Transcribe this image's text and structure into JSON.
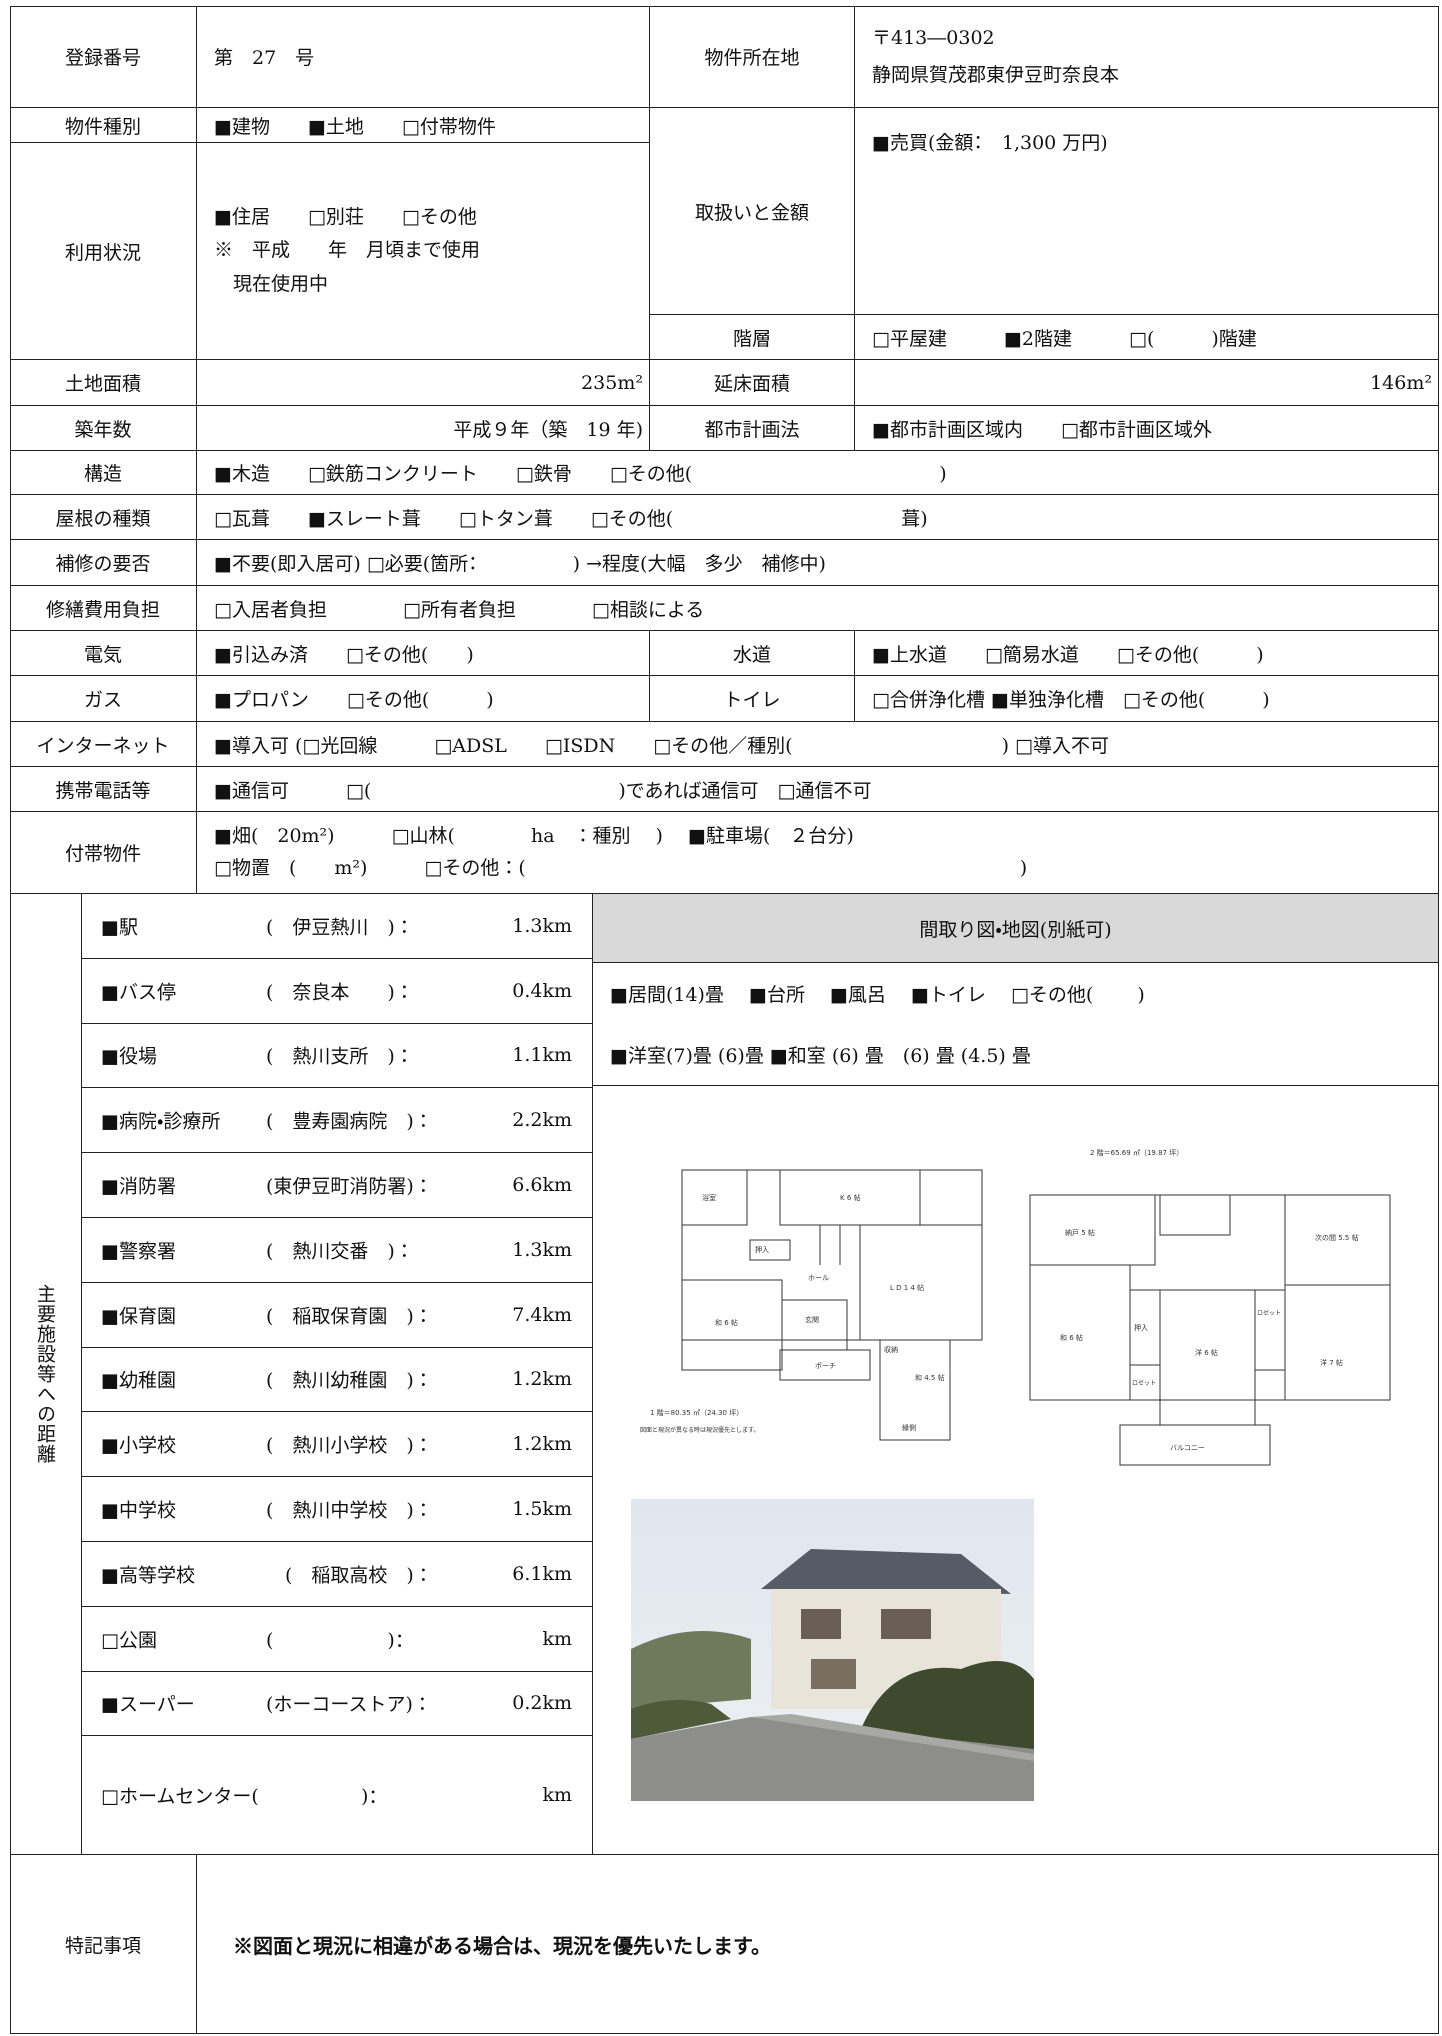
{
  "form": {
    "registration": {
      "label": "登録番号",
      "value": "第　27　号"
    },
    "location": {
      "label": "物件所在地",
      "postal": "〒413―0302",
      "address": "静岡県賀茂郡東伊豆町奈良本"
    },
    "kind": {
      "label": "物件種別",
      "value": "■建物　　■土地　　□付帯物件"
    },
    "usage": {
      "label": "利用状況",
      "lines": [
        "■住居　　□別荘　　□その他",
        "※　平成　　年　月頃まで使用",
        "　現在使用中"
      ]
    },
    "price": {
      "label": "取扱いと金額",
      "value": "■売買(金額：　1,300 万円)"
    },
    "floors": {
      "label": "階層",
      "value": "□平屋建　　　■2階建　　　□(　　　)階建"
    },
    "land_area": {
      "label": "土地面積",
      "value": "235m²"
    },
    "floor_area": {
      "label": "延床面積",
      "value": "146m²"
    },
    "age": {
      "label": "築年数",
      "value": "平成９年（築　19 年)"
    },
    "city_planning": {
      "label": "都市計画法",
      "value": "■都市計画区域内　　□都市計画区域外"
    },
    "structure": {
      "label": "構造",
      "value": "■木造　　□鉄筋コンクリート　　□鉄骨　　□その他(　　　　　　　　　　　　　)"
    },
    "roof": {
      "label": "屋根の種類",
      "value": "□瓦葺　　■スレート葺　　□トタン葺　　□その他(　　　　　　　　　　　　葺)"
    },
    "repair": {
      "label": "補修の要否",
      "value": "■不要(即入居可) □必要(箇所：　　　　　) →程度(大幅　多少　補修中)"
    },
    "repair_cost": {
      "label": "修繕費用負担",
      "value": "□入居者負担　　　　□所有者負担　　　　□相談による"
    },
    "electricity": {
      "label": "電気",
      "value": "■引込み済　　□その他(　　)"
    },
    "water": {
      "label": "水道",
      "value": "■上水道　　□簡易水道　　□その他(　　　)"
    },
    "gas": {
      "label": "ガス",
      "value": "■プロパン　　□その他(　　　)"
    },
    "toilet": {
      "label": "トイレ",
      "value": "□合併浄化槽 ■単独浄化槽　□その他(　　　)"
    },
    "internet": {
      "label": "インターネット",
      "value": "■導入可 (□光回線　　　□ADSL　　□ISDN　　□その他／種別(　　　　　　　　　　　) □導入不可"
    },
    "mobile": {
      "label": "携帯電話等",
      "value": "■通信可　　　□(　　　　　　　　　　　　　)であれば通信可　□通信不可"
    },
    "attachments": {
      "label": "付帯物件",
      "lines": [
        "■畑(　20m²)　　　□山林(　　　　ha　：種別　 )　 ■駐車場(　２台分)",
        "□物置　(　　m²)　　　□その他：(　　　　　　　　　　　　　　　　　　　　　　　　　　)"
      ]
    },
    "distances": {
      "label": "主要施設等への距離",
      "items": [
        {
          "name": "■駅",
          "place": "(　伊豆熱川　)：",
          "distance": "1.3km"
        },
        {
          "name": "■バス停",
          "place": "(　奈良本　　)：",
          "distance": "0.4km"
        },
        {
          "name": "■役場",
          "place": "(　熱川支所　)：",
          "distance": "1.1km"
        },
        {
          "name": "■病院・診療所",
          "place": "(　豊寿園病院　)：",
          "distance": "2.2km"
        },
        {
          "name": "■消防署",
          "place": "(東伊豆町消防署)：",
          "distance": "6.6km"
        },
        {
          "name": "■警察署",
          "place": "(　熱川交番　)：",
          "distance": "1.3km"
        },
        {
          "name": "■保育園",
          "place": "(　稲取保育園　)：",
          "distance": "7.4km"
        },
        {
          "name": "■幼稚園",
          "place": "(　熱川幼稚園　)：",
          "distance": "1.2km"
        },
        {
          "name": "■小学校",
          "place": "(　熱川小学校　)：",
          "distance": "1.2km"
        },
        {
          "name": "■中学校",
          "place": "(　熱川中学校　)：",
          "distance": "1.5km"
        },
        {
          "name": "■高等学校",
          "place": "　(　稲取高校　)：",
          "distance": "6.1km"
        },
        {
          "name": "□公園",
          "place": "(　　　　　　)：",
          "distance": "km"
        },
        {
          "name": "■スーパー",
          "place": "(ホーコーストア)：",
          "distance": "0.2km"
        },
        {
          "name": "□ホームセンター(",
          "place": "　　　　　)：",
          "distance": "km"
        }
      ]
    },
    "layout": {
      "label": "間取り図・地図(別紙可)",
      "lines": [
        "■居間(14)畳　 ■台所　 ■風呂　 ■トイレ　 □その他(　　 )",
        "■洋室(7)畳 (6)畳 ■和室 (6) 畳　(6) 畳 (4.5) 畳"
      ]
    },
    "floor_plan_1": {
      "caption": "1 階＝80.35 ㎡（24.30 坪）",
      "note": "図面と現況が異なる時は現況優先とします。",
      "rooms": [
        "浴室",
        "K 6 帖",
        "押入",
        "ホール",
        "L D 1 4 帖",
        "和 6 帖",
        "玄関",
        "ポーチ",
        "収納",
        "和 4.5 帖",
        "縁側"
      ]
    },
    "floor_plan_2": {
      "caption": "2 階＝65.69 ㎡（19.87 坪）",
      "rooms": [
        "納戸 5 帖",
        "次の間 5.5 帖",
        "和 6 帖",
        "押入",
        "洋 6 帖",
        "洋 7 帖",
        "ロゼット",
        "ロゼット",
        "バルコニー"
      ]
    },
    "remarks": {
      "label": "特記事項",
      "value": "※図面と現況に相違がある場合は、現況を優先いたします。"
    }
  }
}
